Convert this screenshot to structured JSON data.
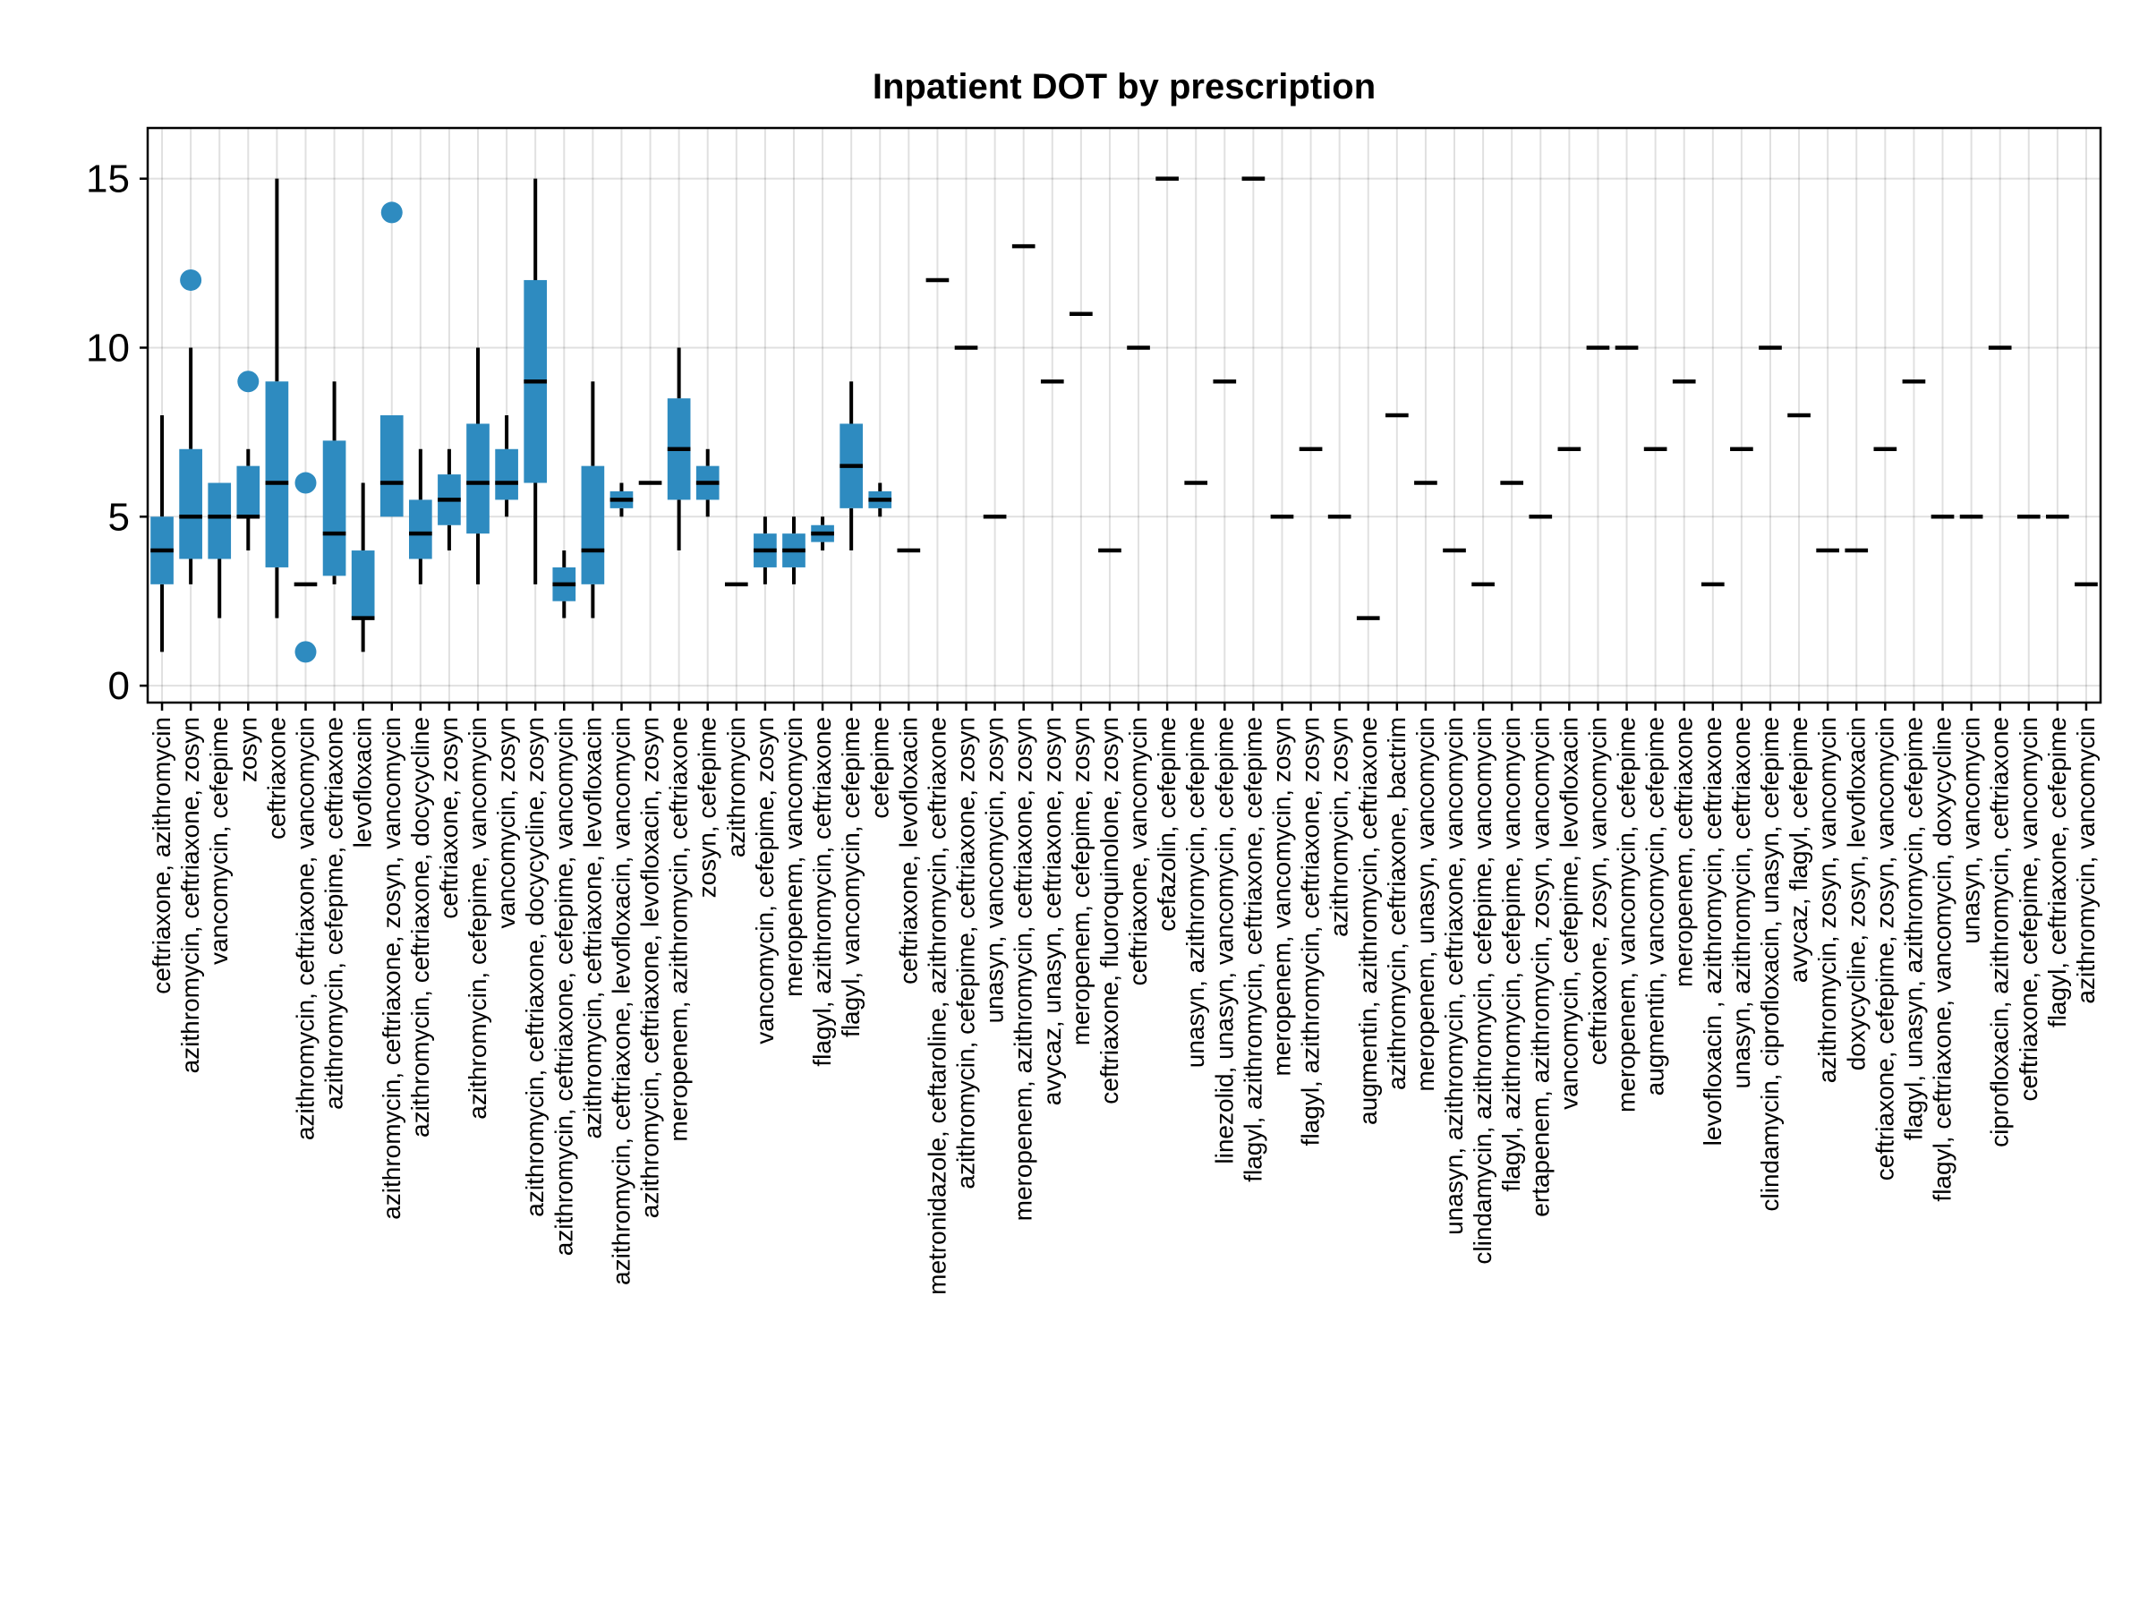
{
  "chart_data": {
    "type": "box",
    "title": "Inpatient DOT by prescription",
    "xlabel": "",
    "ylabel": "",
    "ylim": [
      -0.5,
      16.5
    ],
    "yticks": [
      0,
      5,
      10,
      15
    ],
    "grid": true,
    "box_color": "#2e8bc0",
    "categories": [
      "ceftriaxone, azithromycin",
      "azithromycin, ceftriaxone, zosyn",
      "vancomycin, cefepime",
      "zosyn",
      "ceftriaxone",
      "azithromycin, ceftriaxone, vancomycin",
      "azithromycin, cefepime, ceftriaxone",
      "levofloxacin",
      "azithromycin, ceftriaxone, zosyn, vancomycin",
      "azithromycin, ceftriaxone, docycycline",
      "ceftriaxone, zosyn",
      "azithromycin, cefepime, vancomycin",
      "vancomycin, zosyn",
      "azithromycin, ceftriaxone, docycycline, zosyn",
      "azithromycin, ceftriaxone, cefepime, vancomycin",
      "azithromycin, ceftriaxone, levofloxacin",
      "azithromycin, ceftriaxone, levofloxacin, vancomycin",
      "azithromycin, ceftriaxone, levofloxacin, zosyn",
      "meropenem, azithromycin, ceftriaxone",
      "zosyn, cefepime",
      "azithromycin",
      "vancomycin, cefepime, zosyn",
      "meropenem, vancomycin",
      "flagyl, azithromycin, ceftriaxone",
      "flagyl, vancomycin, cefepime",
      "cefepime",
      "ceftriaxone, levofloxacin",
      "metronidazole, ceftaroline, azithromycin, ceftriaxone",
      "azithromycin, cefepime, ceftriaxone, zosyn",
      "unasyn, vancomycin, zosyn",
      "meropenem, azithromycin, ceftriaxone, zosyn",
      "avycaz, unasyn, ceftriaxone, zosyn",
      "meropenem, cefepime, zosyn",
      "ceftriaxone, fluoroquinolone, zosyn",
      "ceftriaxone, vancomycin",
      "cefazolin, cefepime",
      "unasyn, azithromycin, cefepime",
      "linezolid, unasyn, vancomycin, cefepime",
      "flagyl, azithromycin, ceftriaxone, cefepime",
      "meropenem, vancomycin, zosyn",
      "flagyl, azithromycin, ceftriaxone, zosyn",
      "azithromycin, zosyn",
      "augmentin, azithromycin, ceftriaxone",
      "azithromycin, ceftriaxone, bactrim",
      "meropenem, unasyn, vancomycin",
      "unasyn, azithromycin, ceftriaxone, vancomycin",
      "clindamycin, azithromycin, cefepime, vancomycin",
      "flagyl, azithromycin, cefepime, vancomycin",
      "ertapenem, azithromycin, zosyn, vancomycin",
      "vancomycin, cefepime, levofloxacin",
      "ceftriaxone, zosyn, vancomycin",
      "meropenem, vancomycin, cefepime",
      "augmentin, vancomycin, cefepime",
      "meropenem, ceftriaxone",
      "levofloxacin , azithromycin, ceftriaxone",
      "unasyn, azithromycin, ceftriaxone",
      "clindamycin, ciprofloxacin, unasyn, cefepime",
      "avycaz, flagyl, cefepime",
      "azithromycin, zosyn, vancomycin",
      "doxycycline, zosyn, levofloxacin",
      "ceftriaxone, cefepime, zosyn, vancomycin",
      "flagyl, unasyn, azithromycin, cefepime",
      "flagyl, ceftriaxone, vancomycin, doxycycline",
      "unasyn, vancomycin",
      "ciprofloxacin, azithromycin, ceftriaxone",
      "ceftriaxone, cefepime, vancomycin",
      "flagyl, ceftriaxone, cefepime",
      "azithromycin, vancomycin"
    ],
    "boxes": [
      {
        "min": 1,
        "q1": 3,
        "median": 4,
        "q3": 5,
        "max": 8,
        "outliers": []
      },
      {
        "min": 3,
        "q1": 3.75,
        "median": 5,
        "q3": 7,
        "max": 10,
        "outliers": [
          12
        ]
      },
      {
        "min": 2,
        "q1": 3.75,
        "median": 5,
        "q3": 6,
        "max": 6,
        "outliers": []
      },
      {
        "min": 4,
        "q1": 5,
        "median": 5,
        "q3": 6.5,
        "max": 7,
        "outliers": [
          9
        ]
      },
      {
        "min": 2,
        "q1": 3.5,
        "median": 6,
        "q3": 9,
        "max": 15,
        "outliers": []
      },
      {
        "min": 3,
        "q1": 3,
        "median": 3,
        "q3": 3,
        "max": 3,
        "outliers": [
          6,
          1
        ]
      },
      {
        "min": 3,
        "q1": 3.25,
        "median": 4.5,
        "q3": 7.25,
        "max": 9,
        "outliers": []
      },
      {
        "min": 1,
        "q1": 2,
        "median": 2,
        "q3": 4,
        "max": 6,
        "outliers": []
      },
      {
        "min": 5,
        "q1": 5,
        "median": 6,
        "q3": 8,
        "max": 8,
        "outliers": [
          14
        ]
      },
      {
        "min": 3,
        "q1": 3.75,
        "median": 4.5,
        "q3": 5.5,
        "max": 7,
        "outliers": []
      },
      {
        "min": 4,
        "q1": 4.75,
        "median": 5.5,
        "q3": 6.25,
        "max": 7,
        "outliers": []
      },
      {
        "min": 3,
        "q1": 4.5,
        "median": 6,
        "q3": 7.75,
        "max": 10,
        "outliers": []
      },
      {
        "min": 5,
        "q1": 5.5,
        "median": 6,
        "q3": 7,
        "max": 8,
        "outliers": []
      },
      {
        "min": 3,
        "q1": 6,
        "median": 9,
        "q3": 12,
        "max": 15,
        "outliers": []
      },
      {
        "min": 2,
        "q1": 2.5,
        "median": 3,
        "q3": 3.5,
        "max": 4,
        "outliers": []
      },
      {
        "min": 2,
        "q1": 3,
        "median": 4,
        "q3": 6.5,
        "max": 9,
        "outliers": []
      },
      {
        "min": 5,
        "q1": 5.25,
        "median": 5.5,
        "q3": 5.75,
        "max": 6,
        "outliers": []
      },
      {
        "min": 6,
        "q1": 6,
        "median": 6,
        "q3": 6,
        "max": 6,
        "outliers": []
      },
      {
        "min": 4,
        "q1": 5.5,
        "median": 7,
        "q3": 8.5,
        "max": 10,
        "outliers": []
      },
      {
        "min": 5,
        "q1": 5.5,
        "median": 6,
        "q3": 6.5,
        "max": 7,
        "outliers": []
      },
      {
        "min": 3,
        "q1": 3,
        "median": 3,
        "q3": 3,
        "max": 3,
        "outliers": []
      },
      {
        "min": 3,
        "q1": 3.5,
        "median": 4,
        "q3": 4.5,
        "max": 5,
        "outliers": []
      },
      {
        "min": 3,
        "q1": 3.5,
        "median": 4,
        "q3": 4.5,
        "max": 5,
        "outliers": []
      },
      {
        "min": 4,
        "q1": 4.25,
        "median": 4.5,
        "q3": 4.75,
        "max": 5,
        "outliers": []
      },
      {
        "min": 4,
        "q1": 5.25,
        "median": 6.5,
        "q3": 7.75,
        "max": 9,
        "outliers": []
      },
      {
        "min": 5,
        "q1": 5.25,
        "median": 5.5,
        "q3": 5.75,
        "max": 6,
        "outliers": []
      },
      {
        "min": 4,
        "q1": 4,
        "median": 4,
        "q3": 4,
        "max": 4,
        "outliers": []
      },
      {
        "min": 12,
        "q1": 12,
        "median": 12,
        "q3": 12,
        "max": 12,
        "outliers": []
      },
      {
        "min": 10,
        "q1": 10,
        "median": 10,
        "q3": 10,
        "max": 10,
        "outliers": []
      },
      {
        "min": 5,
        "q1": 5,
        "median": 5,
        "q3": 5,
        "max": 5,
        "outliers": []
      },
      {
        "min": 13,
        "q1": 13,
        "median": 13,
        "q3": 13,
        "max": 13,
        "outliers": []
      },
      {
        "min": 9,
        "q1": 9,
        "median": 9,
        "q3": 9,
        "max": 9,
        "outliers": []
      },
      {
        "min": 11,
        "q1": 11,
        "median": 11,
        "q3": 11,
        "max": 11,
        "outliers": []
      },
      {
        "min": 4,
        "q1": 4,
        "median": 4,
        "q3": 4,
        "max": 4,
        "outliers": []
      },
      {
        "min": 10,
        "q1": 10,
        "median": 10,
        "q3": 10,
        "max": 10,
        "outliers": []
      },
      {
        "min": 15,
        "q1": 15,
        "median": 15,
        "q3": 15,
        "max": 15,
        "outliers": []
      },
      {
        "min": 6,
        "q1": 6,
        "median": 6,
        "q3": 6,
        "max": 6,
        "outliers": []
      },
      {
        "min": 9,
        "q1": 9,
        "median": 9,
        "q3": 9,
        "max": 9,
        "outliers": []
      },
      {
        "min": 15,
        "q1": 15,
        "median": 15,
        "q3": 15,
        "max": 15,
        "outliers": []
      },
      {
        "min": 5,
        "q1": 5,
        "median": 5,
        "q3": 5,
        "max": 5,
        "outliers": []
      },
      {
        "min": 7,
        "q1": 7,
        "median": 7,
        "q3": 7,
        "max": 7,
        "outliers": []
      },
      {
        "min": 5,
        "q1": 5,
        "median": 5,
        "q3": 5,
        "max": 5,
        "outliers": []
      },
      {
        "min": 2,
        "q1": 2,
        "median": 2,
        "q3": 2,
        "max": 2,
        "outliers": []
      },
      {
        "min": 8,
        "q1": 8,
        "median": 8,
        "q3": 8,
        "max": 8,
        "outliers": []
      },
      {
        "min": 6,
        "q1": 6,
        "median": 6,
        "q3": 6,
        "max": 6,
        "outliers": []
      },
      {
        "min": 4,
        "q1": 4,
        "median": 4,
        "q3": 4,
        "max": 4,
        "outliers": []
      },
      {
        "min": 3,
        "q1": 3,
        "median": 3,
        "q3": 3,
        "max": 3,
        "outliers": []
      },
      {
        "min": 6,
        "q1": 6,
        "median": 6,
        "q3": 6,
        "max": 6,
        "outliers": []
      },
      {
        "min": 5,
        "q1": 5,
        "median": 5,
        "q3": 5,
        "max": 5,
        "outliers": []
      },
      {
        "min": 7,
        "q1": 7,
        "median": 7,
        "q3": 7,
        "max": 7,
        "outliers": []
      },
      {
        "min": 10,
        "q1": 10,
        "median": 10,
        "q3": 10,
        "max": 10,
        "outliers": []
      },
      {
        "min": 10,
        "q1": 10,
        "median": 10,
        "q3": 10,
        "max": 10,
        "outliers": []
      },
      {
        "min": 7,
        "q1": 7,
        "median": 7,
        "q3": 7,
        "max": 7,
        "outliers": []
      },
      {
        "min": 9,
        "q1": 9,
        "median": 9,
        "q3": 9,
        "max": 9,
        "outliers": []
      },
      {
        "min": 3,
        "q1": 3,
        "median": 3,
        "q3": 3,
        "max": 3,
        "outliers": []
      },
      {
        "min": 7,
        "q1": 7,
        "median": 7,
        "q3": 7,
        "max": 7,
        "outliers": []
      },
      {
        "min": 10,
        "q1": 10,
        "median": 10,
        "q3": 10,
        "max": 10,
        "outliers": []
      },
      {
        "min": 8,
        "q1": 8,
        "median": 8,
        "q3": 8,
        "max": 8,
        "outliers": []
      },
      {
        "min": 4,
        "q1": 4,
        "median": 4,
        "q3": 4,
        "max": 4,
        "outliers": []
      },
      {
        "min": 4,
        "q1": 4,
        "median": 4,
        "q3": 4,
        "max": 4,
        "outliers": []
      },
      {
        "min": 7,
        "q1": 7,
        "median": 7,
        "q3": 7,
        "max": 7,
        "outliers": []
      },
      {
        "min": 9,
        "q1": 9,
        "median": 9,
        "q3": 9,
        "max": 9,
        "outliers": []
      },
      {
        "min": 5,
        "q1": 5,
        "median": 5,
        "q3": 5,
        "max": 5,
        "outliers": []
      },
      {
        "min": 5,
        "q1": 5,
        "median": 5,
        "q3": 5,
        "max": 5,
        "outliers": []
      },
      {
        "min": 10,
        "q1": 10,
        "median": 10,
        "q3": 10,
        "max": 10,
        "outliers": []
      },
      {
        "min": 5,
        "q1": 5,
        "median": 5,
        "q3": 5,
        "max": 5,
        "outliers": []
      },
      {
        "min": 5,
        "q1": 5,
        "median": 5,
        "q3": 5,
        "max": 5,
        "outliers": []
      },
      {
        "min": 3,
        "q1": 3,
        "median": 3,
        "q3": 3,
        "max": 3,
        "outliers": []
      }
    ]
  }
}
